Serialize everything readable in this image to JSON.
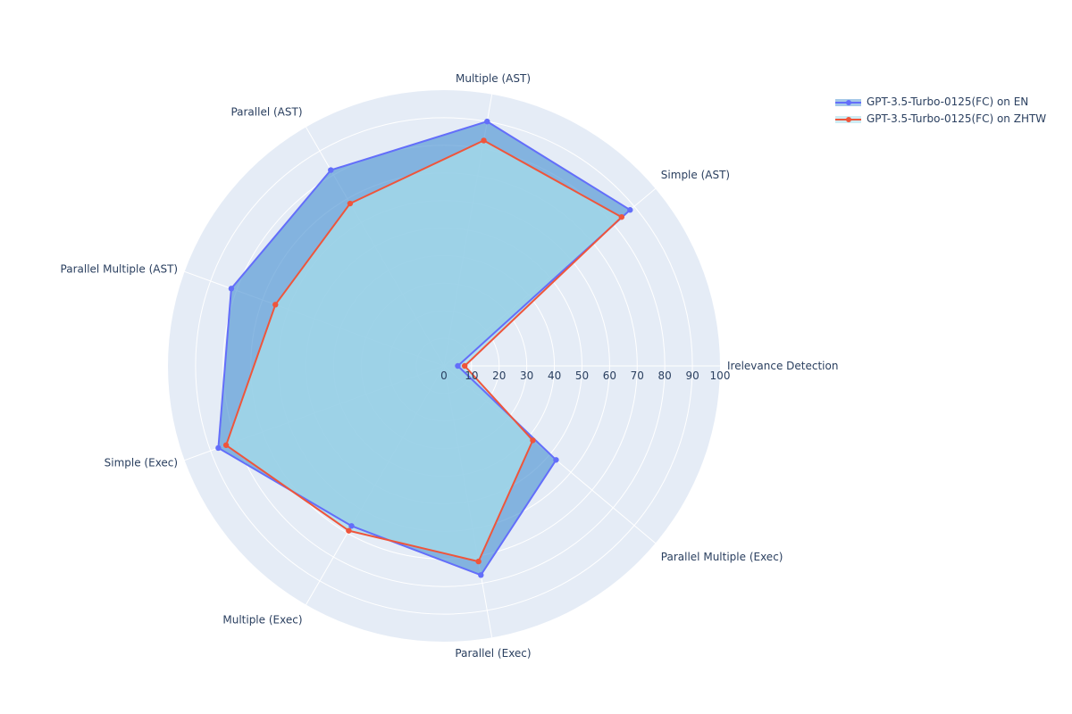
{
  "chart_data": {
    "type": "radar",
    "categories": [
      "Irelevance Detection",
      "Simple (AST)",
      "Multiple (AST)",
      "Parallel (AST)",
      "Parallel Multiple (AST)",
      "Simple (Exec)",
      "Multiple (Exec)",
      "Parallel (Exec)",
      "Parallel Multiple (Exec)"
    ],
    "radial_ticks": [
      "0",
      "10",
      "20",
      "30",
      "40",
      "50",
      "60",
      "70",
      "80",
      "90",
      "100"
    ],
    "rlim": [
      0,
      100
    ],
    "grid": true,
    "legend_position": "top-right",
    "series": [
      {
        "name": "GPT-3.5-Turbo-0125(FC) on EN",
        "color": "#636efa",
        "fill_color": "#5a9bd5",
        "values": [
          5.0,
          88.0,
          90.0,
          82.0,
          82.0,
          87.0,
          67.0,
          77.0,
          53.0
        ]
      },
      {
        "name": "GPT-3.5-Turbo-0125(FC) on ZHTW",
        "color": "#ef553b",
        "fill_color": "#a6dcea",
        "values": [
          7.5,
          84.0,
          83.0,
          68.0,
          65.0,
          84.0,
          69.0,
          72.0,
          42.0
        ]
      }
    ]
  }
}
